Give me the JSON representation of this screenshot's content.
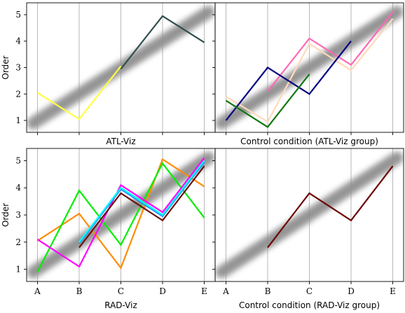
{
  "chart_data": [
    {
      "type": "line",
      "xlabel": "ATL-Viz",
      "ylabel": "Order",
      "categories": [
        "A",
        "B",
        "C",
        "D",
        "E"
      ],
      "ylim": [
        0.55,
        5.45
      ],
      "yticks": [
        1,
        2,
        3,
        4,
        5
      ],
      "grid": "vertical",
      "series": [
        {
          "color": "#ffff44",
          "values": [
            2.05,
            1.05,
            3.05,
            null,
            null
          ]
        },
        {
          "color": "#2f4f4f",
          "values": [
            null,
            null,
            2.95,
            4.95,
            3.95
          ]
        }
      ]
    },
    {
      "type": "line",
      "xlabel": "Control condition (ATL-Viz group)",
      "categories": [
        "A",
        "B",
        "C",
        "D",
        "E"
      ],
      "ylim": [
        0.55,
        5.45
      ],
      "yticks": [
        1,
        2,
        3,
        4,
        5
      ],
      "grid": "vertical",
      "series": [
        {
          "color": "#ffdab9",
          "values": [
            1.9,
            0.95,
            3.9,
            2.9,
            4.85
          ]
        },
        {
          "color": "#ff69b4",
          "values": [
            null,
            2.1,
            4.1,
            3.1,
            5.1
          ]
        },
        {
          "color": "#000080",
          "values": [
            1.0,
            3.0,
            2.0,
            4.0,
            null
          ]
        },
        {
          "color": "#117711",
          "values": [
            1.75,
            0.75,
            2.75,
            null,
            null
          ]
        }
      ]
    },
    {
      "type": "line",
      "xlabel": "RAD-Viz",
      "ylabel": "Order",
      "categories": [
        "A",
        "B",
        "C",
        "D",
        "E"
      ],
      "ylim": [
        0.55,
        5.45
      ],
      "yticks": [
        1,
        2,
        3,
        4,
        5
      ],
      "grid": "vertical",
      "series": [
        {
          "color": "#ff8c00",
          "values": [
            2.05,
            3.05,
            1.05,
            5.05,
            4.05
          ]
        },
        {
          "color": "#00ee00",
          "values": [
            0.9,
            3.9,
            1.9,
            4.9,
            2.9
          ]
        },
        {
          "color": "#ff00ff",
          "values": [
            2.1,
            1.1,
            4.1,
            3.1,
            5.1
          ]
        },
        {
          "color": "#1e90ff",
          "values": [
            null,
            1.95,
            3.95,
            2.95,
            4.95
          ]
        },
        {
          "color": "#00ffff",
          "values": [
            null,
            2.0,
            4.0,
            3.0,
            5.0
          ]
        },
        {
          "color": "#6b1111",
          "values": [
            null,
            1.8,
            3.8,
            2.8,
            4.8
          ]
        }
      ]
    },
    {
      "type": "line",
      "xlabel": "Control condition (RAD-Viz group)",
      "categories": [
        "A",
        "B",
        "C",
        "D",
        "E"
      ],
      "ylim": [
        0.55,
        5.45
      ],
      "yticks": [
        1,
        2,
        3,
        4,
        5
      ],
      "grid": "vertical",
      "series": [
        {
          "color": "#6b0000",
          "values": [
            null,
            1.8,
            3.8,
            2.8,
            4.8
          ]
        }
      ]
    }
  ]
}
